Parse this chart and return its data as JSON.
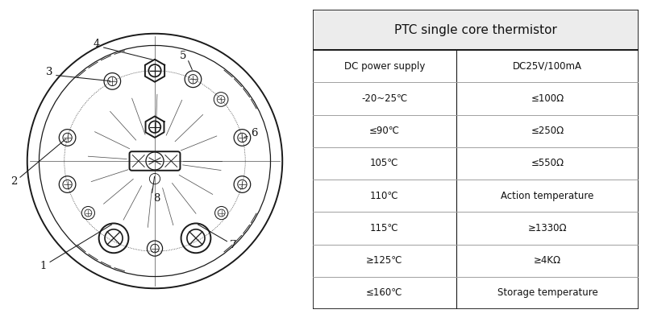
{
  "table_title": "PTC single core thermistor",
  "table_col1": [
    "DC power supply",
    "-20~25℃",
    "≤90℃",
    "105℃",
    "110℃",
    "115℃",
    "≥125℃",
    "≤160℃"
  ],
  "table_col2": [
    "DC25V/100mA",
    "≤100Ω",
    "≤250Ω",
    "≤550Ω",
    "Action temperature",
    "≥1330Ω",
    "≥4KΩ",
    "Storage temperature"
  ],
  "bg_color": "#ffffff",
  "line_color": "#1a1a1a",
  "text_color": "#111111",
  "fig_width": 8.0,
  "fig_height": 4.0,
  "dpi": 100
}
